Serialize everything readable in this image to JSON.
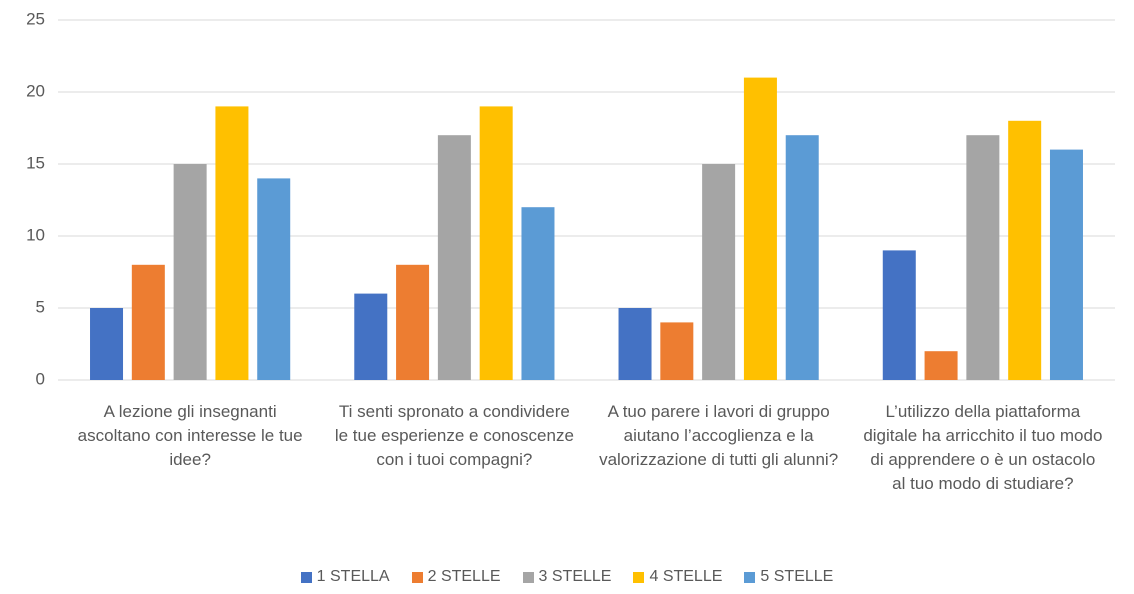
{
  "chart_data": {
    "type": "bar",
    "categories": [
      "A lezione gli insegnanti ascoltano con interesse le tue idee?",
      "Ti senti spronato a condividere le tue esperienze e conoscenze con i tuoi compagni?",
      "A tuo parere i lavori di gruppo aiutano l’accoglienza e la valorizzazione di tutti gli alunni?",
      "L’utilizzo della piattaforma digitale ha arricchito il tuo modo di apprendere o è un ostacolo al tuo modo di studiare?"
    ],
    "series": [
      {
        "name": "1 STELLA",
        "color": "#4472c4",
        "values": [
          5,
          6,
          5,
          9
        ]
      },
      {
        "name": "2 STELLE",
        "color": "#ed7d31",
        "values": [
          8,
          8,
          4,
          2
        ]
      },
      {
        "name": "3 STELLE",
        "color": "#a5a5a5",
        "values": [
          15,
          17,
          15,
          17
        ]
      },
      {
        "name": "4 STELLE",
        "color": "#ffc000",
        "values": [
          19,
          19,
          21,
          18
        ]
      },
      {
        "name": "5 STELLE",
        "color": "#5b9bd5",
        "values": [
          14,
          12,
          17,
          16
        ]
      }
    ],
    "ylim": [
      0,
      25
    ],
    "yticks": [
      0,
      5,
      10,
      15,
      20,
      25
    ],
    "grid": true,
    "legend": "bottom"
  }
}
